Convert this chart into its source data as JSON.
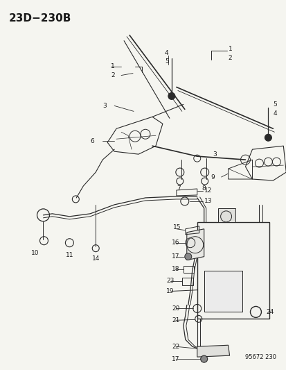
{
  "title": "23D−230B",
  "part_number": "95672 230",
  "bg_color": "#f5f5f0",
  "line_color": "#2a2a2a",
  "text_color": "#1a1a1a",
  "title_fontsize": 11,
  "annotation_fontsize": 6.5,
  "fig_width": 4.14,
  "fig_height": 5.33,
  "dpi": 100
}
